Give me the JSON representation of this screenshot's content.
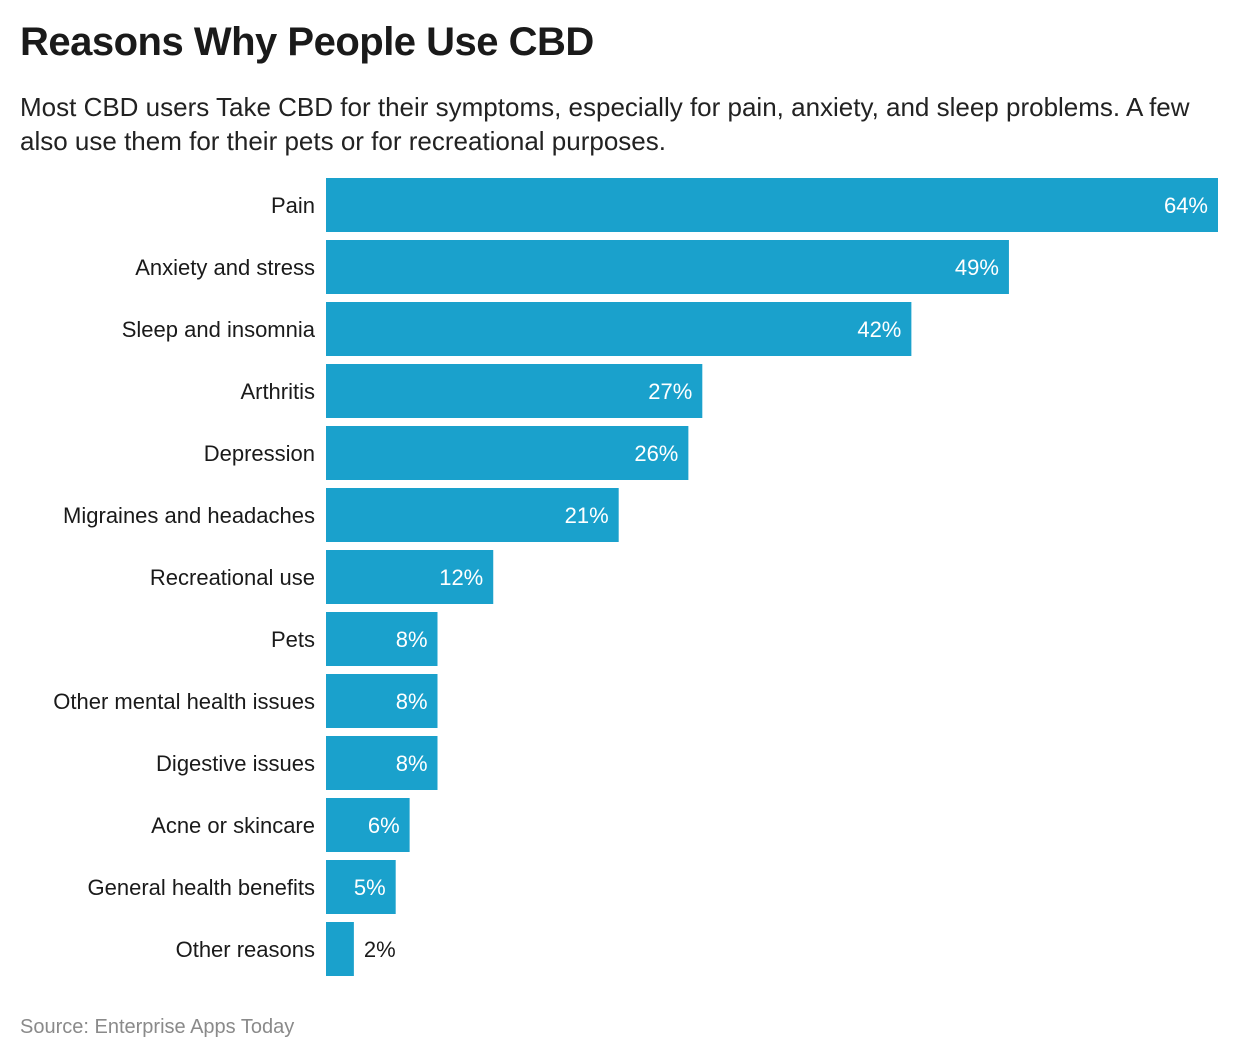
{
  "title": "Reasons Why People Use CBD",
  "subtitle": "Most CBD users Take CBD for their symptoms, especially for pain, anxiety, and sleep problems. A few also use them for their pets or for recreational purposes.",
  "source": "Source: Enterprise Apps Today",
  "chart_data": {
    "type": "bar",
    "orientation": "horizontal",
    "title": "Reasons Why People Use CBD",
    "categories": [
      "Pain",
      "Anxiety and stress",
      "Sleep and insomnia",
      "Arthritis",
      "Depression",
      "Migraines and headaches",
      "Recreational use",
      "Pets",
      "Other mental health issues",
      "Digestive issues",
      "Acne or skincare",
      "General health benefits",
      "Other reasons"
    ],
    "values": [
      64,
      49,
      42,
      27,
      26,
      21,
      12,
      8,
      8,
      8,
      6,
      5,
      2
    ],
    "labels": [
      "64%",
      "49%",
      "42%",
      "27%",
      "26%",
      "21%",
      "12%",
      "8%",
      "8%",
      "8%",
      "6%",
      "5%",
      "2%"
    ],
    "unit": "%",
    "xlim": [
      0,
      64
    ],
    "grid": false,
    "legend": "none",
    "colors": {
      "bar": "#1aa1cc",
      "label_inside": "#ffffff",
      "label_outside": "#1a1a1a"
    }
  }
}
